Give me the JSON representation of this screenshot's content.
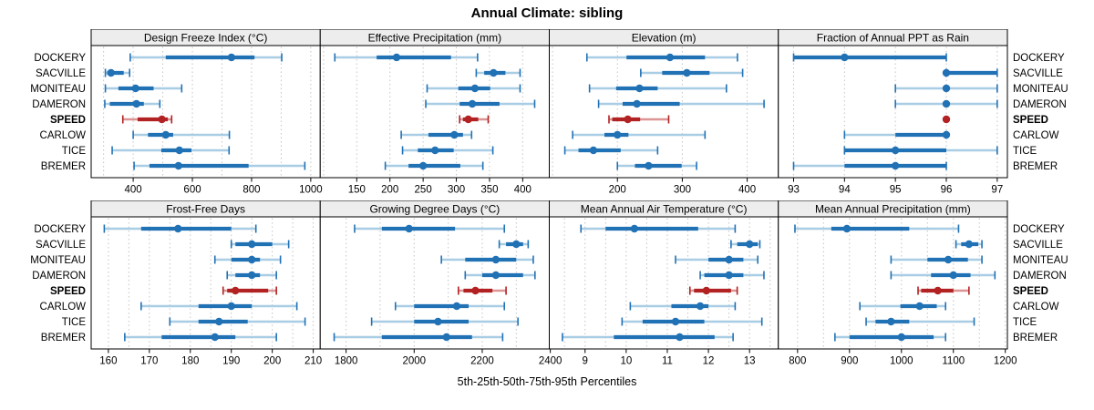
{
  "title": "Annual Climate: sibling",
  "caption": "5th-25th-50th-75th-95th Percentiles",
  "series_names": [
    "DOCKERY",
    "SACVILLE",
    "MONITEAU",
    "DAMERON",
    "SPEED",
    "CARLOW",
    "TICE",
    "BREMER"
  ],
  "highlight_series": "SPEED",
  "colors": {
    "blue_dark": "#2171b5",
    "blue_light": "#a8cde4",
    "red_dark": "#b22222",
    "red_light": "#dc9494",
    "grid": "#c4c4c4",
    "strip_bg": "#ededed",
    "border": "#000000",
    "text": "#000000"
  },
  "chart_data": [
    {
      "type": "interval",
      "title": "Design Freeze Index (°C)",
      "xlim": [
        258,
        1032
      ],
      "tick_values": [
        400,
        600,
        800,
        1000
      ],
      "tick_labels": [
        "400",
        "600",
        "800",
        "1000"
      ],
      "grid_values": [
        300,
        400,
        500,
        600,
        700,
        800,
        900,
        1000
      ],
      "series": [
        {
          "name": "DOCKERY",
          "percentiles": [
            390,
            510,
            732,
            810,
            902
          ]
        },
        {
          "name": "SACVILLE",
          "percentiles": [
            306,
            312,
            325,
            368,
            388
          ]
        },
        {
          "name": "MONITEAU",
          "percentiles": [
            306,
            350,
            408,
            469,
            564
          ]
        },
        {
          "name": "DAMERON",
          "percentiles": [
            304,
            321,
            411,
            436,
            490
          ]
        },
        {
          "name": "SPEED",
          "percentiles": [
            365,
            415,
            497,
            517,
            530
          ]
        },
        {
          "name": "CARLOW",
          "percentiles": [
            400,
            450,
            510,
            535,
            725
          ]
        },
        {
          "name": "TICE",
          "percentiles": [
            329,
            495,
            556,
            597,
            724
          ]
        },
        {
          "name": "BREMER",
          "percentiles": [
            403,
            455,
            553,
            790,
            980
          ]
        }
      ]
    },
    {
      "type": "interval",
      "title": "Effective Precipitation (mm)",
      "xlim": [
        95,
        440
      ],
      "tick_values": [
        150,
        200,
        250,
        300,
        350,
        400
      ],
      "tick_labels": [
        "150",
        "200",
        "250",
        "300",
        "350",
        "400"
      ],
      "grid_values": [
        100,
        150,
        200,
        250,
        300,
        350,
        400
      ],
      "series": [
        {
          "name": "DOCKERY",
          "percentiles": [
            117,
            180,
            210,
            292,
            332
          ]
        },
        {
          "name": "SACVILLE",
          "percentiles": [
            330,
            342,
            356,
            374,
            396
          ]
        },
        {
          "name": "MONITEAU",
          "percentiles": [
            256,
            303,
            328,
            351,
            396
          ]
        },
        {
          "name": "DAMERON",
          "percentiles": [
            254,
            305,
            324,
            365,
            418
          ]
        },
        {
          "name": "SPEED",
          "percentiles": [
            305,
            310,
            318,
            333,
            348
          ]
        },
        {
          "name": "CARLOW",
          "percentiles": [
            217,
            258,
            297,
            310,
            323
          ]
        },
        {
          "name": "TICE",
          "percentiles": [
            219,
            242,
            268,
            296,
            355
          ]
        },
        {
          "name": "BREMER",
          "percentiles": [
            193,
            228,
            250,
            306,
            340
          ]
        }
      ]
    },
    {
      "type": "interval",
      "title": "Elevation (m)",
      "xlim": [
        95,
        448
      ],
      "tick_values": [
        200,
        300,
        400
      ],
      "tick_labels": [
        "200",
        "300",
        "400"
      ],
      "grid_values": [
        100,
        200,
        300,
        400
      ],
      "series": [
        {
          "name": "DOCKERY",
          "percentiles": [
            153,
            214,
            281,
            335,
            385
          ]
        },
        {
          "name": "SACVILLE",
          "percentiles": [
            236,
            269,
            307,
            342,
            393
          ]
        },
        {
          "name": "MONITEAU",
          "percentiles": [
            157,
            198,
            234,
            262,
            368
          ]
        },
        {
          "name": "DAMERON",
          "percentiles": [
            171,
            208,
            230,
            296,
            426
          ]
        },
        {
          "name": "SPEED",
          "percentiles": [
            187,
            192,
            216,
            235,
            279
          ]
        },
        {
          "name": "CARLOW",
          "percentiles": [
            131,
            180,
            200,
            217,
            335
          ]
        },
        {
          "name": "TICE",
          "percentiles": [
            119,
            140,
            163,
            205,
            262
          ]
        },
        {
          "name": "BREMER",
          "percentiles": [
            200,
            227,
            248,
            299,
            322
          ]
        }
      ]
    },
    {
      "type": "interval",
      "title": "Fraction of Annual PPT as Rain",
      "xlim": [
        92.7,
        97.2
      ],
      "tick_values": [
        93,
        94,
        95,
        96,
        97
      ],
      "tick_labels": [
        "93",
        "94",
        "95",
        "96",
        "97"
      ],
      "grid_values": [
        93,
        94,
        95,
        96,
        97
      ],
      "series": [
        {
          "name": "DOCKERY",
          "percentiles": [
            93,
            93,
            94,
            96,
            96
          ]
        },
        {
          "name": "SACVILLE",
          "percentiles": [
            96,
            96,
            96,
            97,
            97
          ]
        },
        {
          "name": "MONITEAU",
          "percentiles": [
            95,
            96,
            96,
            96,
            97
          ]
        },
        {
          "name": "DAMERON",
          "percentiles": [
            95,
            96,
            96,
            96,
            97
          ]
        },
        {
          "name": "SPEED",
          "percentiles": [
            96,
            96,
            96,
            96,
            96
          ]
        },
        {
          "name": "CARLOW",
          "percentiles": [
            94,
            95,
            96,
            96,
            96
          ]
        },
        {
          "name": "TICE",
          "percentiles": [
            94,
            94,
            95,
            96,
            97
          ]
        },
        {
          "name": "BREMER",
          "percentiles": [
            93,
            94,
            95,
            96,
            96
          ]
        }
      ]
    },
    {
      "type": "interval",
      "title": "Frost-Free Days",
      "xlim": [
        155.8,
        211.7
      ],
      "tick_values": [
        160,
        170,
        180,
        190,
        200,
        210
      ],
      "tick_labels": [
        "160",
        "170",
        "180",
        "190",
        "200",
        "210"
      ],
      "grid_values": [
        160,
        165,
        170,
        175,
        180,
        185,
        190,
        195,
        200,
        205,
        210
      ],
      "series": [
        {
          "name": "DOCKERY",
          "percentiles": [
            159,
            168,
            177,
            190,
            196
          ]
        },
        {
          "name": "SACVILLE",
          "percentiles": [
            190,
            191,
            195,
            200,
            204
          ]
        },
        {
          "name": "MONITEAU",
          "percentiles": [
            186,
            190,
            195,
            197,
            202
          ]
        },
        {
          "name": "DAMERON",
          "percentiles": [
            189,
            191,
            195,
            197,
            201
          ]
        },
        {
          "name": "SPEED",
          "percentiles": [
            188,
            189,
            191,
            199,
            201
          ]
        },
        {
          "name": "CARLOW",
          "percentiles": [
            168,
            182,
            190,
            195,
            206
          ]
        },
        {
          "name": "TICE",
          "percentiles": [
            175,
            182,
            187,
            194,
            208
          ]
        },
        {
          "name": "BREMER",
          "percentiles": [
            164,
            173,
            186,
            191,
            201
          ]
        }
      ]
    },
    {
      "type": "interval",
      "title": "Growing Degree Days (°C)",
      "xlim": [
        1724,
        2397
      ],
      "tick_values": [
        1800,
        2000,
        2200,
        2400
      ],
      "tick_labels": [
        "1800",
        "2000",
        "2200",
        "2400"
      ],
      "grid_values": [
        1800,
        1900,
        2000,
        2100,
        2200,
        2300
      ],
      "series": [
        {
          "name": "DOCKERY",
          "percentiles": [
            1825,
            1905,
            1985,
            2120,
            2265
          ]
        },
        {
          "name": "SACVILLE",
          "percentiles": [
            2250,
            2270,
            2300,
            2320,
            2335
          ]
        },
        {
          "name": "MONITEAU",
          "percentiles": [
            2080,
            2150,
            2240,
            2300,
            2350
          ]
        },
        {
          "name": "DAMERON",
          "percentiles": [
            2150,
            2200,
            2240,
            2320,
            2355
          ]
        },
        {
          "name": "SPEED",
          "percentiles": [
            2130,
            2145,
            2180,
            2230,
            2270
          ]
        },
        {
          "name": "CARLOW",
          "percentiles": [
            1945,
            2000,
            2125,
            2160,
            2265
          ]
        },
        {
          "name": "TICE",
          "percentiles": [
            1875,
            2000,
            2070,
            2160,
            2305
          ]
        },
        {
          "name": "BREMER",
          "percentiles": [
            1765,
            1905,
            2095,
            2170,
            2260
          ]
        }
      ]
    },
    {
      "type": "interval",
      "title": "Mean Annual Air Temperature (°C)",
      "xlim": [
        8.13,
        13.7
      ],
      "tick_values": [
        9,
        10,
        11,
        12,
        13
      ],
      "tick_labels": [
        "9",
        "10",
        "11",
        "12",
        "13"
      ],
      "grid_values": [
        8.5,
        9,
        9.5,
        10,
        10.5,
        11,
        11.5,
        12,
        12.5,
        13,
        13.5
      ],
      "series": [
        {
          "name": "DOCKERY",
          "percentiles": [
            8.9,
            9.5,
            10.2,
            11.75,
            12.65
          ]
        },
        {
          "name": "SACVILLE",
          "percentiles": [
            12.55,
            12.7,
            13.0,
            13.2,
            13.25
          ]
        },
        {
          "name": "MONITEAU",
          "percentiles": [
            11.2,
            12.0,
            12.5,
            12.85,
            13.2
          ]
        },
        {
          "name": "DAMERON",
          "percentiles": [
            11.8,
            11.9,
            12.5,
            12.85,
            13.35
          ]
        },
        {
          "name": "SPEED",
          "percentiles": [
            11.55,
            11.65,
            11.95,
            12.55,
            12.7
          ]
        },
        {
          "name": "CARLOW",
          "percentiles": [
            10.1,
            11.1,
            11.8,
            12.0,
            12.65
          ]
        },
        {
          "name": "TICE",
          "percentiles": [
            9.9,
            10.4,
            11.2,
            11.9,
            13.3
          ]
        },
        {
          "name": "BREMER",
          "percentiles": [
            8.45,
            9.7,
            11.3,
            12.15,
            12.6
          ]
        }
      ]
    },
    {
      "type": "interval",
      "title": "Mean Annual Precipitation (mm)",
      "xlim": [
        763,
        1204
      ],
      "tick_values": [
        800,
        900,
        1000,
        1100,
        1200
      ],
      "tick_labels": [
        "800",
        "900",
        "1000",
        "1100",
        "1200"
      ],
      "grid_values": [
        800,
        850,
        900,
        950,
        1000,
        1050,
        1100,
        1150,
        1200
      ],
      "series": [
        {
          "name": "DOCKERY",
          "percentiles": [
            795,
            865,
            895,
            1015,
            1110
          ]
        },
        {
          "name": "SACVILLE",
          "percentiles": [
            1105,
            1115,
            1130,
            1148,
            1155
          ]
        },
        {
          "name": "MONITEAU",
          "percentiles": [
            980,
            1050,
            1090,
            1128,
            1155
          ]
        },
        {
          "name": "DAMERON",
          "percentiles": [
            980,
            1057,
            1100,
            1133,
            1180
          ]
        },
        {
          "name": "SPEED",
          "percentiles": [
            1032,
            1038,
            1070,
            1100,
            1130
          ]
        },
        {
          "name": "CARLOW",
          "percentiles": [
            920,
            998,
            1035,
            1068,
            1085
          ]
        },
        {
          "name": "TICE",
          "percentiles": [
            932,
            950,
            980,
            1015,
            1140
          ]
        },
        {
          "name": "BREMER",
          "percentiles": [
            872,
            900,
            1000,
            1062,
            1085
          ]
        }
      ]
    }
  ]
}
